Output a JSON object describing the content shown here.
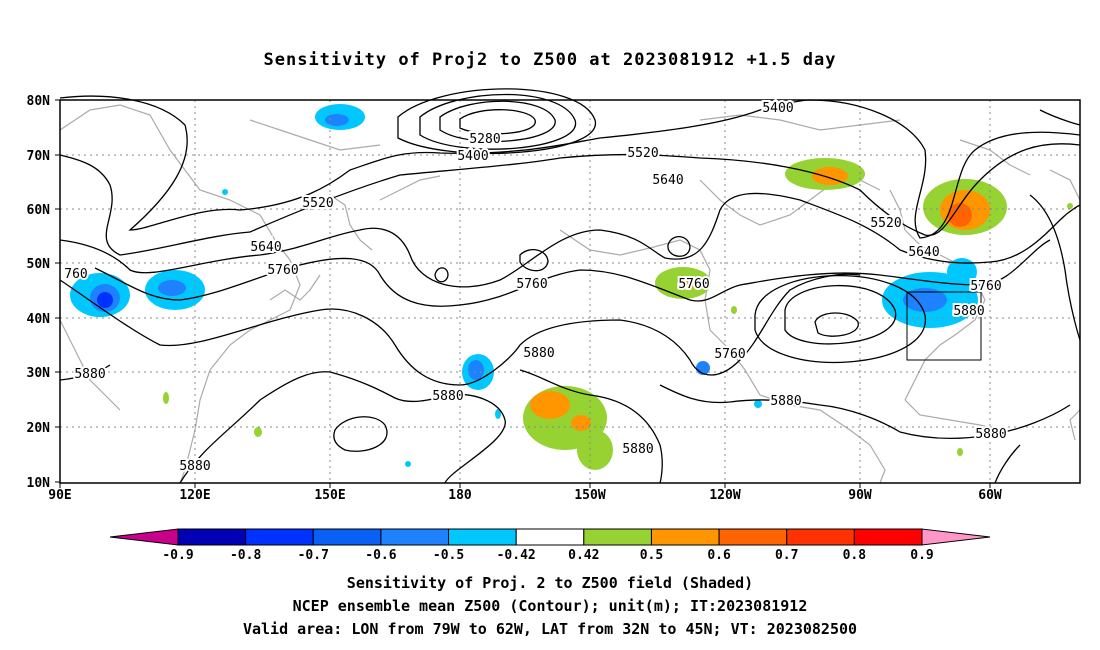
{
  "title": "Sensitivity of Proj2 to Z500 at 2023081912 +1.5 day",
  "lat_labels": [
    "80N",
    "70N",
    "60N",
    "50N",
    "40N",
    "30N",
    "20N",
    "10N"
  ],
  "lon_labels": [
    "90E",
    "120E",
    "150E",
    "180",
    "150W",
    "120W",
    "90W",
    "60W"
  ],
  "contour_labels": [
    {
      "text": "5280"
    },
    {
      "text": "5400"
    },
    {
      "text": "5400"
    },
    {
      "text": "5520"
    },
    {
      "text": "5520"
    },
    {
      "text": "5520"
    },
    {
      "text": "5640"
    },
    {
      "text": "5640"
    },
    {
      "text": "5640"
    },
    {
      "text": "5760"
    },
    {
      "text": "5760"
    },
    {
      "text": "5760"
    },
    {
      "text": "5760"
    },
    {
      "text": "5760"
    },
    {
      "text": "760"
    },
    {
      "text": "5880"
    },
    {
      "text": "5880"
    },
    {
      "text": "5880"
    },
    {
      "text": "5880"
    },
    {
      "text": "5880"
    },
    {
      "text": "5880"
    },
    {
      "text": "5880"
    },
    {
      "text": "5880"
    }
  ],
  "colorbar": {
    "labels": [
      "-0.9",
      "-0.8",
      "-0.7",
      "-0.6",
      "-0.5",
      "-0.42",
      "0.42",
      "0.5",
      "0.6",
      "0.7",
      "0.8",
      "0.9"
    ],
    "colors": [
      "#c8008c",
      "#0000b4",
      "#0032ff",
      "#0a5ff5",
      "#1e82ff",
      "#00c8ff",
      "#ffffff",
      "#96d232",
      "#ff9600",
      "#ff6400",
      "#ff3200",
      "#ff0000",
      "#ff96c8"
    ]
  },
  "footer": {
    "line1": "Sensitivity of Proj. 2 to Z500 field (Shaded)",
    "line2": "NCEP ensemble mean Z500 (Contour); unit(m); IT:2023081912",
    "line3": "Valid area: LON from 79W to 62W, LAT from 32N to 45N; VT: 2023082500"
  }
}
